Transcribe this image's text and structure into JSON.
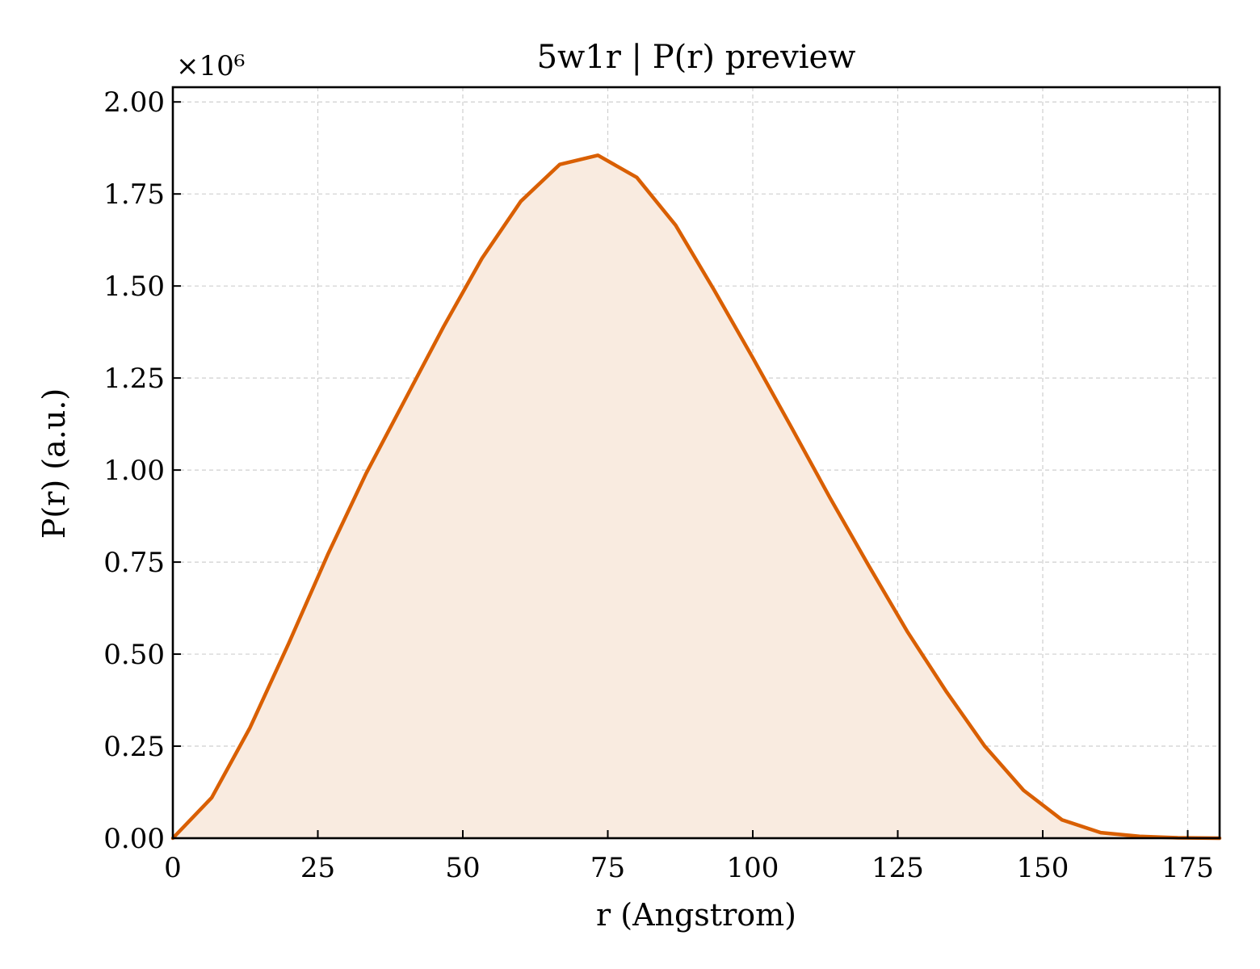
{
  "chart_data": {
    "type": "area",
    "title": "5w1r | P(r) preview",
    "xlabel": "r (Angstrom)",
    "ylabel": "P(r) (a.u.)",
    "y_multiplier_label": "×10⁶",
    "xlim": [
      0,
      180.5
    ],
    "ylim": [
      0,
      2.04
    ],
    "x_ticks": [
      0,
      25,
      50,
      75,
      100,
      125,
      150,
      175
    ],
    "x_tick_labels": [
      "0",
      "25",
      "50",
      "75",
      "100",
      "125",
      "150",
      "175"
    ],
    "y_ticks": [
      0,
      0.25,
      0.5,
      0.75,
      1.0,
      1.25,
      1.5,
      1.75,
      2.0
    ],
    "y_tick_labels": [
      "0.00",
      "0.25",
      "0.50",
      "0.75",
      "1.00",
      "1.25",
      "1.50",
      "1.75",
      "2.00"
    ],
    "grid": true,
    "line_color": "#d95f02",
    "fill_color": "#f9ebe0",
    "series": [
      {
        "x": [
          0,
          6.7,
          13.3,
          20,
          26.7,
          33.3,
          40,
          46.7,
          53.3,
          60,
          66.7,
          73.3,
          80,
          86.7,
          93.3,
          100,
          106.7,
          113.3,
          120,
          126.7,
          133.3,
          140,
          146.7,
          153.3,
          160,
          166.7,
          173.3,
          180.5
        ],
        "y": [
          0,
          0.11,
          0.3,
          0.53,
          0.77,
          0.99,
          1.19,
          1.39,
          1.575,
          1.73,
          1.83,
          1.855,
          1.795,
          1.665,
          1.49,
          1.305,
          1.115,
          0.925,
          0.74,
          0.56,
          0.4,
          0.25,
          0.13,
          0.05,
          0.015,
          0.005,
          0.001,
          0
        ]
      }
    ]
  }
}
